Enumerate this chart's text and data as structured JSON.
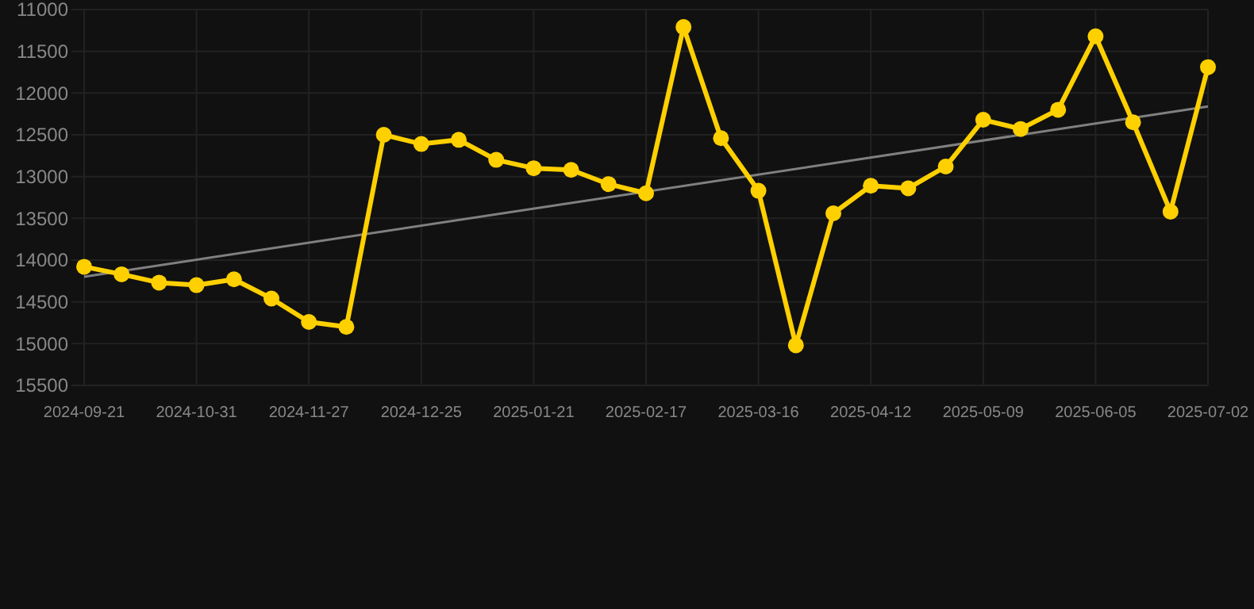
{
  "chart_data": {
    "type": "line",
    "categories": [
      "2024-09-21",
      null,
      null,
      "2024-10-31",
      null,
      null,
      "2024-11-27",
      null,
      null,
      "2024-12-25",
      null,
      null,
      "2025-01-21",
      null,
      null,
      "2025-02-17",
      null,
      null,
      "2025-03-16",
      null,
      null,
      "2025-04-12",
      null,
      null,
      "2025-05-09",
      null,
      null,
      "2025-06-05",
      null,
      null,
      "2025-07-02"
    ],
    "series": [
      {
        "color": "#ffd000",
        "marker": "circle",
        "values": [
          14080,
          14170,
          14270,
          14300,
          14230,
          14460,
          14740,
          14800,
          12500,
          12610,
          12560,
          12800,
          12900,
          12920,
          13090,
          13200,
          11210,
          12540,
          13170,
          15020,
          13440,
          13110,
          13140,
          12880,
          12320,
          12430,
          12200,
          11320,
          12350,
          13420,
          11690
        ]
      },
      {
        "type": "line",
        "color": "#808080",
        "marker": "none",
        "values": [
          14200,
          null,
          null,
          null,
          null,
          null,
          null,
          null,
          null,
          null,
          null,
          null,
          null,
          null,
          null,
          null,
          null,
          null,
          null,
          null,
          null,
          null,
          null,
          null,
          null,
          null,
          null,
          null,
          null,
          null,
          12160
        ]
      }
    ],
    "ylim": [
      15500,
      11000
    ],
    "yticks": [
      11000,
      11500,
      12000,
      12500,
      13000,
      13500,
      14000,
      14500,
      15000,
      15500
    ],
    "grid": true
  }
}
